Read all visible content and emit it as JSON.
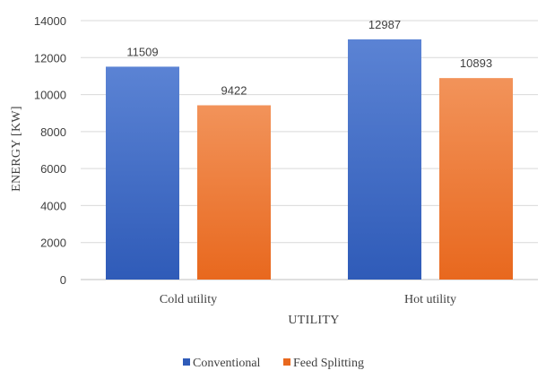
{
  "chart_data": {
    "type": "bar",
    "categories": [
      "Cold utility",
      "Hot utility"
    ],
    "series": [
      {
        "name": "Conventional",
        "values": [
          11509,
          12987
        ],
        "color_top": "#5B83D4",
        "color_bottom": "#2F5BB8"
      },
      {
        "name": "Feed Splitting",
        "values": [
          9422,
          10893
        ],
        "color_top": "#F2935A",
        "color_bottom": "#E8681E"
      }
    ],
    "title": "",
    "xlabel": "UTILITY",
    "ylabel": "ENERGY [KW]",
    "ylim": [
      0,
      14000
    ],
    "yticks": [
      0,
      2000,
      4000,
      6000,
      8000,
      10000,
      12000,
      14000
    ],
    "grid": true,
    "legend_position": "bottom"
  }
}
